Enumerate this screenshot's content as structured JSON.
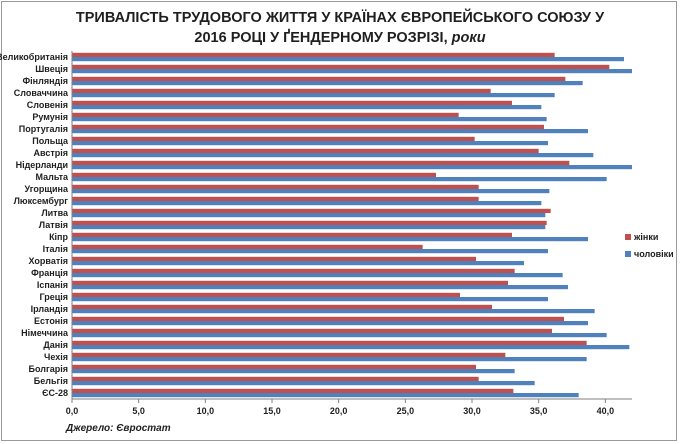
{
  "title_main": "ТРИВАЛІСТЬ ТРУДОВОГО ЖИТТЯ У КРАЇНАХ ЄВРОПЕЙСЬКОГО СОЮЗУ У 2016 РОЦІ У ҐЕНДЕРНОМУ РОЗРІЗІ,",
  "title_unit": "роки",
  "source": "Джерело: Євростат",
  "colors": {
    "women": "#c0504d",
    "men": "#4f81bd"
  },
  "chart_data": {
    "type": "bar",
    "orientation": "horizontal",
    "title": "ТРИВАЛІСТЬ ТРУДОВОГО ЖИТТЯ У КРАЇНАХ ЄВРОПЕЙСЬКОГО СОЮЗУ У 2016 РОЦІ У ҐЕНДЕРНОМУ РОЗРІЗІ, роки",
    "categories": [
      "Великобританія",
      "Швеція",
      "Фінляндія",
      "Словаччина",
      "Словенія",
      "Румунія",
      "Португалія",
      "Польща",
      "Австрія",
      "Нідерланди",
      "Мальта",
      "Угорщина",
      "Люксембург",
      "Литва",
      "Латвія",
      "Кіпр",
      "Італія",
      "Хорватія",
      "Франція",
      "Іспанія",
      "Греція",
      "Ірландія",
      "Естонія",
      "Німеччина",
      "Данія",
      "Чехія",
      "Болгарія",
      "Бельгія",
      "ЄС-28"
    ],
    "series": [
      {
        "name": "жінки",
        "values": [
          36.2,
          40.3,
          37.0,
          31.4,
          33.0,
          29.0,
          35.4,
          30.2,
          35.0,
          37.3,
          27.3,
          30.5,
          30.5,
          35.9,
          35.6,
          33.0,
          26.3,
          30.3,
          33.2,
          32.7,
          29.1,
          31.5,
          36.9,
          36.0,
          38.6,
          32.5,
          30.3,
          30.5,
          33.1
        ]
      },
      {
        "name": "чоловіки",
        "values": [
          41.4,
          42.0,
          38.3,
          36.2,
          35.2,
          35.6,
          38.7,
          35.7,
          39.1,
          42.0,
          40.1,
          35.8,
          35.2,
          35.5,
          35.5,
          38.7,
          35.7,
          33.9,
          36.8,
          37.2,
          35.7,
          39.2,
          38.7,
          40.1,
          41.8,
          38.6,
          33.2,
          34.7,
          38.0
        ]
      }
    ],
    "x_ticks": [
      "0,0",
      "5,0",
      "10,0",
      "15,0",
      "20,0",
      "25,0",
      "30,0",
      "35,0",
      "40,0"
    ],
    "xlim": [
      0,
      42
    ],
    "grid": false,
    "legend_position": "right"
  }
}
